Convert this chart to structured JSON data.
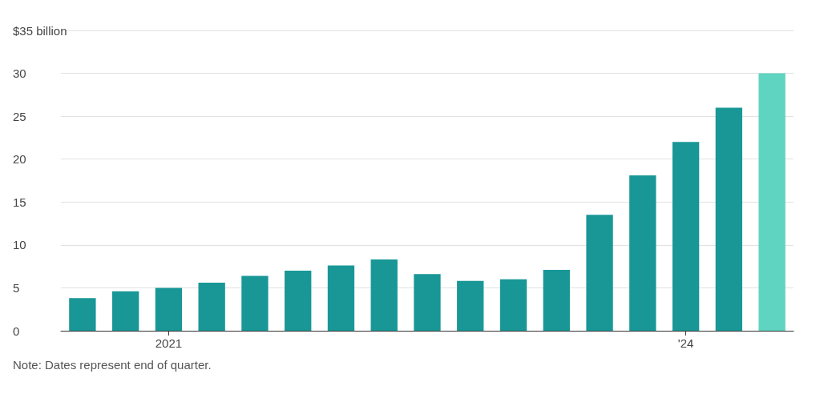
{
  "chart_data": {
    "type": "bar",
    "categories": [
      null,
      null,
      "2021",
      null,
      null,
      null,
      null,
      null,
      null,
      null,
      null,
      null,
      null,
      null,
      "'24",
      null,
      null
    ],
    "values": [
      3.8,
      4.6,
      5.0,
      5.6,
      6.4,
      7.0,
      7.6,
      8.3,
      6.6,
      5.8,
      6.0,
      7.1,
      13.5,
      18.1,
      22.0,
      26.0,
      30.0
    ],
    "colors": [
      "#199797",
      "#199797",
      "#199797",
      "#199797",
      "#199797",
      "#199797",
      "#199797",
      "#199797",
      "#199797",
      "#199797",
      "#199797",
      "#199797",
      "#199797",
      "#199797",
      "#199797",
      "#199797",
      "#5fd4c0"
    ],
    "ylim": [
      0,
      35
    ],
    "yticks": [
      0,
      5,
      10,
      15,
      20,
      25,
      30,
      {
        "value": 35,
        "label": "$35 billion"
      }
    ],
    "grid": "y",
    "annotations": [
      "Note: Dates represent end of quarter."
    ]
  }
}
